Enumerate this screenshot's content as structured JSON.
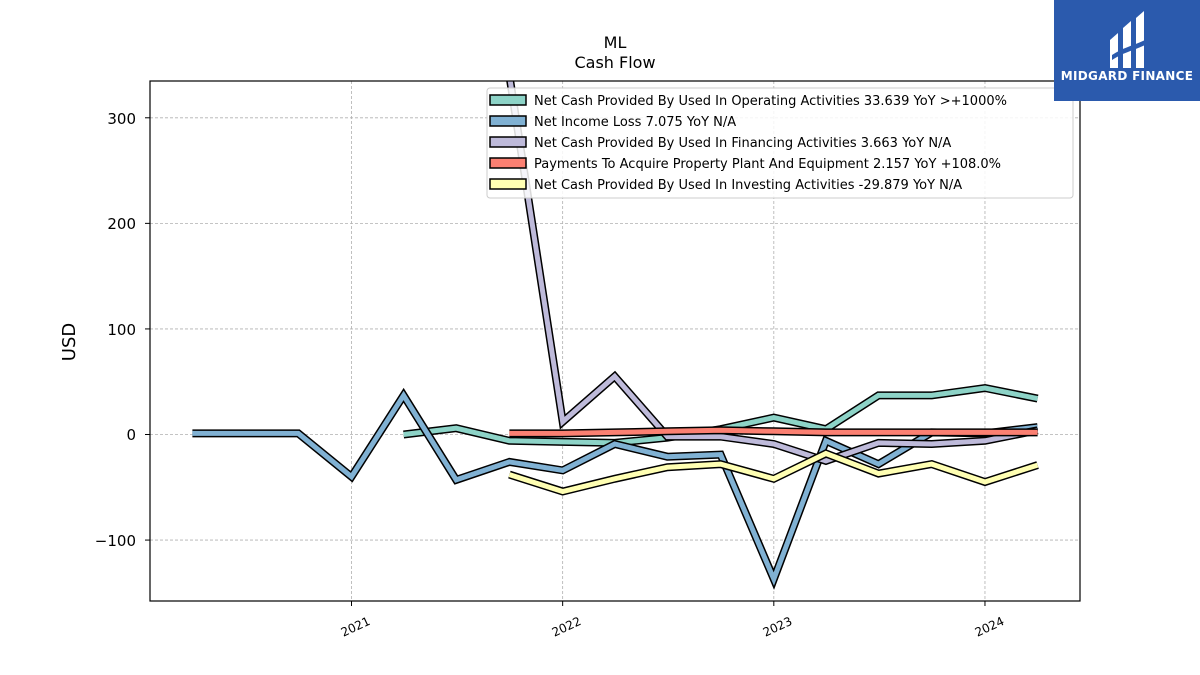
{
  "chart_data": {
    "type": "line",
    "title": "ML",
    "subtitle": "Cash Flow",
    "ylabel": "USD",
    "xlabel": "",
    "x_ticks": [
      "2021",
      "2022",
      "2023",
      "2024"
    ],
    "y_ticks": [
      "300",
      "200",
      "100",
      "0",
      "−100"
    ],
    "ylim": [
      -158,
      336
    ],
    "grid": true,
    "legend_position": "top-right",
    "series": [
      {
        "name": "Net Cash Provided By Used In Operating Activities  33.639 YoY >+1000%",
        "color": "#8dd3c7",
        "points": [
          [
            "2021-04-01",
            0
          ],
          [
            "2021-07-01",
            6
          ],
          [
            "2021-10-01",
            -6
          ],
          [
            "2022-01-01",
            -7
          ],
          [
            "2022-04-01",
            -8
          ],
          [
            "2022-07-01",
            -3
          ],
          [
            "2022-10-01",
            5
          ],
          [
            "2023-01-01",
            16
          ],
          [
            "2023-04-01",
            5
          ],
          [
            "2023-07-01",
            37
          ],
          [
            "2023-10-01",
            37
          ],
          [
            "2024-01-01",
            44
          ],
          [
            "2024-04-01",
            34
          ]
        ]
      },
      {
        "name": "Net Income Loss  7.075 YoY N/A",
        "color": "#80b1d3",
        "points": [
          [
            "2020-04-01",
            1
          ],
          [
            "2020-07-01",
            1
          ],
          [
            "2020-10-01",
            1
          ],
          [
            "2021-01-01",
            -40
          ],
          [
            "2021-04-01",
            37
          ],
          [
            "2021-07-01",
            -43
          ],
          [
            "2021-10-01",
            -26
          ],
          [
            "2022-01-01",
            -34
          ],
          [
            "2022-04-01",
            -9
          ],
          [
            "2022-07-01",
            -21
          ],
          [
            "2022-10-01",
            -19
          ],
          [
            "2023-01-01",
            -137
          ],
          [
            "2023-04-01",
            -6
          ],
          [
            "2023-07-01",
            -28
          ],
          [
            "2023-10-01",
            2
          ],
          [
            "2024-01-01",
            1
          ],
          [
            "2024-04-01",
            7
          ]
        ]
      },
      {
        "name": "Net Cash Provided By Used In Financing Activities  3.663 YoY N/A",
        "color": "#bebada",
        "points": [
          [
            "2021-10-01",
            340
          ],
          [
            "2022-01-01",
            12
          ],
          [
            "2022-04-01",
            55
          ],
          [
            "2022-07-01",
            -2
          ],
          [
            "2022-10-01",
            -2
          ],
          [
            "2023-01-01",
            -9
          ],
          [
            "2023-04-01",
            -25
          ],
          [
            "2023-07-01",
            -8
          ],
          [
            "2023-10-01",
            -9
          ],
          [
            "2024-01-01",
            -6
          ],
          [
            "2024-04-01",
            4
          ]
        ]
      },
      {
        "name": "Payments To Acquire Property Plant And Equipment  2.157 YoY +108.0%",
        "color": "#fb8072",
        "points": [
          [
            "2021-10-01",
            1
          ],
          [
            "2022-01-01",
            1
          ],
          [
            "2022-04-01",
            2
          ],
          [
            "2022-07-01",
            3
          ],
          [
            "2022-10-01",
            4
          ],
          [
            "2023-01-01",
            3
          ],
          [
            "2023-04-01",
            2
          ],
          [
            "2023-07-01",
            2
          ],
          [
            "2023-10-01",
            2
          ],
          [
            "2024-01-01",
            2
          ],
          [
            "2024-04-01",
            2
          ]
        ]
      },
      {
        "name": "Net Cash Provided By Used In Investing Activities  -29.879 YoY N/A",
        "color": "#ffffb3",
        "points": [
          [
            "2021-10-01",
            -38
          ],
          [
            "2022-01-01",
            -54
          ],
          [
            "2022-04-01",
            -42
          ],
          [
            "2022-07-01",
            -31
          ],
          [
            "2022-10-01",
            -28
          ],
          [
            "2023-01-01",
            -42
          ],
          [
            "2023-04-01",
            -18
          ],
          [
            "2023-07-01",
            -37
          ],
          [
            "2023-10-01",
            -28
          ],
          [
            "2024-01-01",
            -45
          ],
          [
            "2024-04-01",
            -29
          ]
        ]
      }
    ]
  },
  "logo": {
    "text": "MIDGARD FINANCE",
    "background": "#2b5aad"
  }
}
